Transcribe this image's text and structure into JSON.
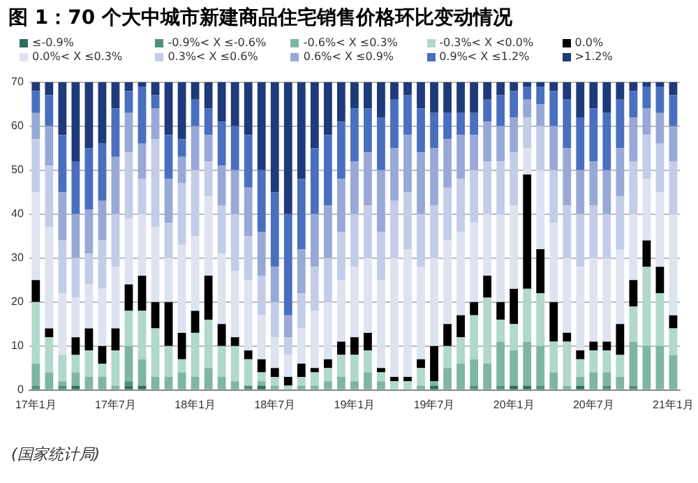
{
  "chart_data": {
    "type": "bar",
    "title": "图 1：70 个大中城市新建商品住宅销售价格环比变动情况",
    "stacked": true,
    "legend": "top",
    "grid": "y",
    "categories": [
      "17年1月",
      null,
      null,
      null,
      null,
      null,
      "17年7月",
      null,
      null,
      null,
      null,
      null,
      "18年1月",
      null,
      null,
      null,
      null,
      null,
      "18年7月",
      null,
      null,
      null,
      null,
      null,
      "19年1月",
      null,
      null,
      null,
      null,
      null,
      "19年7月",
      null,
      null,
      null,
      null,
      null,
      "20年1月",
      null,
      null,
      null,
      null,
      null,
      "20年7月",
      null,
      null,
      null,
      null,
      null,
      "21年1月"
    ],
    "ylim": [
      0,
      70
    ],
    "yticks": [
      0,
      10,
      20,
      30,
      40,
      50,
      60,
      70
    ],
    "series": [
      {
        "name": "≤-0.9%",
        "color": "#2e6e5e",
        "values": [
          0,
          0,
          0,
          1,
          0,
          0,
          0,
          1,
          1,
          0,
          0,
          0,
          0,
          0,
          0,
          0,
          0,
          1,
          0,
          0,
          0,
          0,
          0,
          0,
          0,
          0,
          0,
          0,
          0,
          0,
          1,
          0,
          0,
          0,
          0,
          0,
          1,
          1,
          0,
          0,
          0,
          1,
          0,
          0,
          0,
          0,
          0,
          0,
          0
        ]
      },
      {
        "name": "-0.9%< X ≤-0.6%",
        "color": "#4f8f7f",
        "values": [
          1,
          0,
          1,
          0,
          0,
          0,
          0,
          1,
          0,
          0,
          0,
          0,
          0,
          0,
          0,
          0,
          1,
          0,
          0,
          0,
          0,
          0,
          0,
          0,
          0,
          0,
          0,
          0,
          0,
          0,
          0,
          0,
          0,
          1,
          0,
          1,
          0,
          0,
          1,
          0,
          0,
          0,
          0,
          1,
          0,
          1,
          0,
          0,
          0
        ]
      },
      {
        "name": "-0.6%< X ≤0.3%",
        "color": "#7fb5a5",
        "values": [
          5,
          4,
          1,
          3,
          3,
          3,
          1,
          8,
          6,
          3,
          3,
          4,
          3,
          5,
          3,
          2,
          0,
          1,
          1,
          0,
          1,
          1,
          2,
          3,
          2,
          4,
          2,
          0,
          0,
          1,
          1,
          5,
          6,
          6,
          6,
          10,
          8,
          10,
          9,
          4,
          1,
          2,
          4,
          3,
          3,
          10,
          10,
          10,
          8
        ]
      },
      {
        "name": "-0.3%< X <0.0%",
        "color": "#b0d8cc",
        "values": [
          14,
          8,
          6,
          4,
          6,
          3,
          8,
          8,
          11,
          11,
          7,
          3,
          10,
          11,
          7,
          8,
          6,
          2,
          2,
          1,
          2,
          3,
          3,
          5,
          6,
          5,
          2,
          2,
          2,
          4,
          0,
          5,
          6,
          10,
          15,
          5,
          6,
          12,
          12,
          7,
          10,
          4,
          5,
          5,
          5,
          8,
          18,
          12,
          6
        ]
      },
      {
        "name": "0.0%",
        "color": "#000000",
        "values": [
          5,
          2,
          0,
          4,
          5,
          4,
          5,
          6,
          8,
          6,
          10,
          6,
          5,
          10,
          5,
          2,
          2,
          3,
          2,
          2,
          3,
          1,
          2,
          3,
          4,
          4,
          1,
          1,
          1,
          2,
          8,
          5,
          5,
          3,
          5,
          4,
          8,
          26,
          10,
          9,
          2,
          2,
          2,
          2,
          7,
          6,
          6,
          6,
          3
        ]
      },
      {
        "name": "0.0%< X ≤0.3%",
        "color": "#dde3f0",
        "values": [
          20,
          23,
          14,
          9,
          10,
          13,
          14,
          15,
          14,
          17,
          10,
          20,
          17,
          18,
          16,
          15,
          16,
          10,
          7,
          5,
          8,
          13,
          13,
          14,
          16,
          17,
          20,
          27,
          29,
          21,
          20,
          19,
          19,
          18,
          14,
          20,
          19,
          6,
          18,
          18,
          17,
          19,
          19,
          19,
          17,
          15,
          14,
          17,
          23
        ]
      },
      {
        "name": "0.3%< X ≤0.6%",
        "color": "#c3cde8",
        "values": [
          12,
          14,
          12,
          9,
          7,
          11,
          12,
          15,
          8,
          20,
          8,
          14,
          15,
          8,
          11,
          13,
          10,
          9,
          8,
          4,
          8,
          10,
          10,
          11,
          12,
          12,
          11,
          13,
          13,
          12,
          12,
          12,
          12,
          12,
          12,
          12,
          12,
          7,
          10,
          12,
          12,
          12,
          12,
          10,
          12,
          12,
          10,
          11,
          12
        ]
      },
      {
        "name": "0.6%< X ≤0.9%",
        "color": "#98a9d8",
        "values": [
          6,
          9,
          11,
          10,
          10,
          9,
          13,
          9,
          8,
          7,
          10,
          6,
          10,
          6,
          9,
          10,
          11,
          10,
          8,
          5,
          10,
          12,
          12,
          12,
          12,
          12,
          14,
          12,
          13,
          14,
          13,
          11,
          10,
          8,
          9,
          8,
          8,
          4,
          5,
          10,
          13,
          10,
          10,
          10,
          11,
          10,
          6,
          7,
          8
        ]
      },
      {
        "name": "0.9%< X ≤1.2%",
        "color": "#4a6fbf",
        "values": [
          5,
          7,
          13,
          12,
          14,
          13,
          11,
          5,
          13,
          3,
          10,
          4,
          6,
          6,
          10,
          10,
          12,
          14,
          17,
          23,
          16,
          15,
          16,
          13,
          12,
          10,
          12,
          11,
          9,
          10,
          8,
          6,
          5,
          5,
          5,
          7,
          6,
          3,
          4,
          8,
          11,
          12,
          12,
          13,
          11,
          6,
          5,
          6,
          7
        ]
      },
      {
        "name": ">1.2%",
        "color": "#1f3a7a",
        "values": [
          2,
          3,
          12,
          18,
          15,
          14,
          6,
          2,
          1,
          3,
          12,
          13,
          4,
          6,
          9,
          10,
          12,
          20,
          25,
          30,
          22,
          15,
          12,
          9,
          6,
          6,
          8,
          4,
          3,
          6,
          7,
          7,
          7,
          7,
          4,
          3,
          2,
          1,
          1,
          2,
          4,
          8,
          6,
          7,
          4,
          2,
          1,
          1,
          3
        ]
      }
    ],
    "annotations": [
      "(国家统计局)"
    ]
  }
}
